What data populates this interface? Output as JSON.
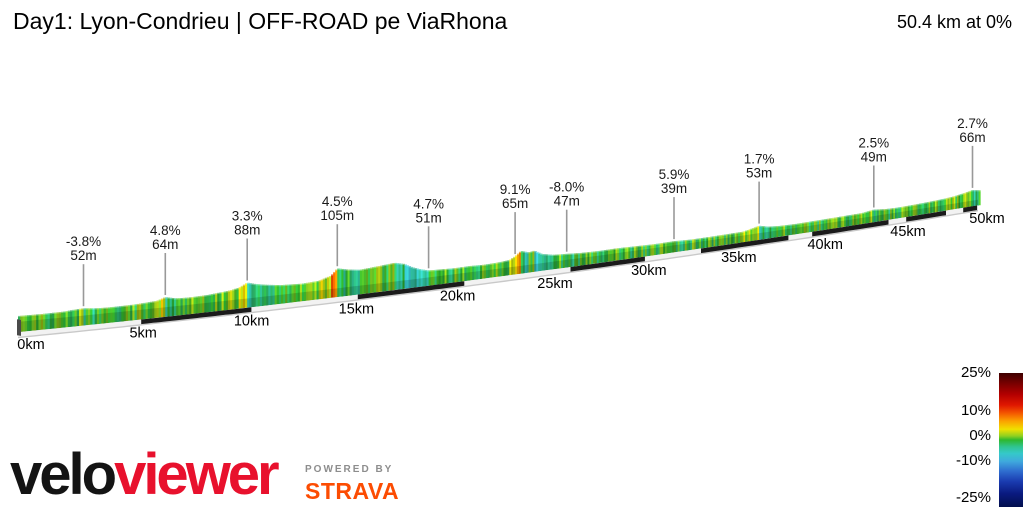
{
  "header": {
    "title": "Day1: Lyon-Condrieu | OFF-ROAD pe ViaRhona",
    "summary": "50.4 km at 0%"
  },
  "chart_data": {
    "type": "area",
    "title": "Day1: Lyon-Condrieu | OFF-ROAD pe ViaRhona",
    "total_distance_km": 50.4,
    "average_gradient_pct": 0,
    "xlabel": "distance",
    "ylabel": "elevation",
    "x_ticks": [
      {
        "km": 0,
        "label": "0km"
      },
      {
        "km": 5,
        "label": "5km"
      },
      {
        "km": 10,
        "label": "10km"
      },
      {
        "km": 15,
        "label": "15km"
      },
      {
        "km": 20,
        "label": "20km"
      },
      {
        "km": 25,
        "label": "25km"
      },
      {
        "km": 30,
        "label": "30km"
      },
      {
        "km": 35,
        "label": "35km"
      },
      {
        "km": 40,
        "label": "40km"
      },
      {
        "km": 45,
        "label": "45km"
      },
      {
        "km": 50,
        "label": "50km"
      }
    ],
    "profile": {
      "km": [
        0,
        1,
        2,
        2.5,
        2.9,
        3.4,
        4,
        5,
        5.5,
        6.2,
        6.6,
        7.1,
        7.7,
        8.5,
        9.5,
        10,
        10.4,
        10.8,
        11.3,
        12,
        13,
        13.8,
        14.4,
        14.7,
        15.2,
        15.8,
        16.4,
        17,
        17.5,
        18,
        18.4,
        18.8,
        19.2,
        19.8,
        20.5,
        21.3,
        22,
        22.7,
        23.3,
        23.6,
        23.9,
        24.3,
        24.6,
        25,
        25.6,
        26.3,
        27,
        28,
        29,
        30,
        31,
        32.1,
        33,
        34,
        35,
        36,
        36.5,
        36.9,
        37.4,
        38,
        39,
        40,
        41,
        42,
        43,
        43.7,
        44.3,
        45,
        46,
        47,
        48,
        48.7,
        49.3,
        49.9,
        50.4
      ],
      "elevation_m": [
        46,
        45,
        46,
        50,
        52,
        47,
        45,
        46,
        48,
        52,
        64,
        54,
        52,
        54,
        62,
        70,
        88,
        78,
        70,
        62,
        58,
        62,
        78,
        105,
        95,
        88,
        92,
        96,
        100,
        90,
        72,
        60,
        51,
        49,
        47,
        48,
        46,
        48,
        52,
        65,
        84,
        74,
        78,
        60,
        50,
        47,
        43,
        41,
        42,
        40,
        38,
        39,
        36,
        36,
        37,
        38,
        46,
        53,
        44,
        40,
        38,
        39,
        40,
        41,
        42,
        49,
        44,
        42,
        43,
        45,
        48,
        52,
        58,
        66,
        60
      ]
    },
    "annotations": [
      {
        "km": 2.9,
        "gradient": "-3.8%",
        "elevation": "52m"
      },
      {
        "km": 6.6,
        "gradient": "4.8%",
        "elevation": "64m"
      },
      {
        "km": 10.4,
        "gradient": "3.3%",
        "elevation": "88m"
      },
      {
        "km": 14.7,
        "gradient": "4.5%",
        "elevation": "105m"
      },
      {
        "km": 19.2,
        "gradient": "4.7%",
        "elevation": "51m"
      },
      {
        "km": 23.6,
        "gradient": "9.1%",
        "elevation": "65m"
      },
      {
        "km": 26.3,
        "gradient": "-8.0%",
        "elevation": "47m"
      },
      {
        "km": 32.1,
        "gradient": "5.9%",
        "elevation": "39m"
      },
      {
        "km": 36.9,
        "gradient": "1.7%",
        "elevation": "53m"
      },
      {
        "km": 43.7,
        "gradient": "2.5%",
        "elevation": "49m"
      },
      {
        "km": 49.9,
        "gradient": "2.7%",
        "elevation": "66m"
      }
    ],
    "surface_dark_sections_km": [
      [
        5.5,
        10.6
      ],
      [
        15.7,
        21.0
      ],
      [
        26.5,
        30.5
      ],
      [
        33.6,
        38.6
      ],
      [
        40.0,
        44.6
      ],
      [
        45.7,
        48.2
      ],
      [
        49.3,
        50.2
      ]
    ],
    "legend": {
      "position": "bottom-right",
      "ticks": [
        {
          "value": 25,
          "label": "25%"
        },
        {
          "value": 10,
          "label": "10%"
        },
        {
          "value": 0,
          "label": "0%"
        },
        {
          "value": -10,
          "label": "-10%"
        },
        {
          "value": -25,
          "label": "-25%"
        }
      ],
      "gradient_stops": [
        [
          0,
          "#3d0000"
        ],
        [
          8,
          "#7a0000"
        ],
        [
          16,
          "#b30000"
        ],
        [
          24,
          "#e01800"
        ],
        [
          30,
          "#f45800"
        ],
        [
          36,
          "#fba300"
        ],
        [
          42,
          "#f0e000"
        ],
        [
          47,
          "#8fd020"
        ],
        [
          50,
          "#2eb82e"
        ],
        [
          55,
          "#2fc48f"
        ],
        [
          60,
          "#35c9c9"
        ],
        [
          66,
          "#3fa9dd"
        ],
        [
          73,
          "#2f6fd0"
        ],
        [
          81,
          "#1a3bb0"
        ],
        [
          90,
          "#0a1a80"
        ],
        [
          100,
          "#020f4d"
        ]
      ]
    }
  },
  "footer": {
    "brand_black": "velo",
    "brand_red": "viewer",
    "powered_by": "POWERED BY",
    "strava": "STRAVA"
  },
  "colors": {
    "brand_red": "#e8112d",
    "strava_orange": "#fc4c02",
    "annotation_text": "#1a1a1a",
    "pointer_line": "#999999",
    "base_band": "#f2f2f2",
    "base_band_shadow": "#c9c9c9",
    "surface_dark": "#1b1b1b"
  }
}
